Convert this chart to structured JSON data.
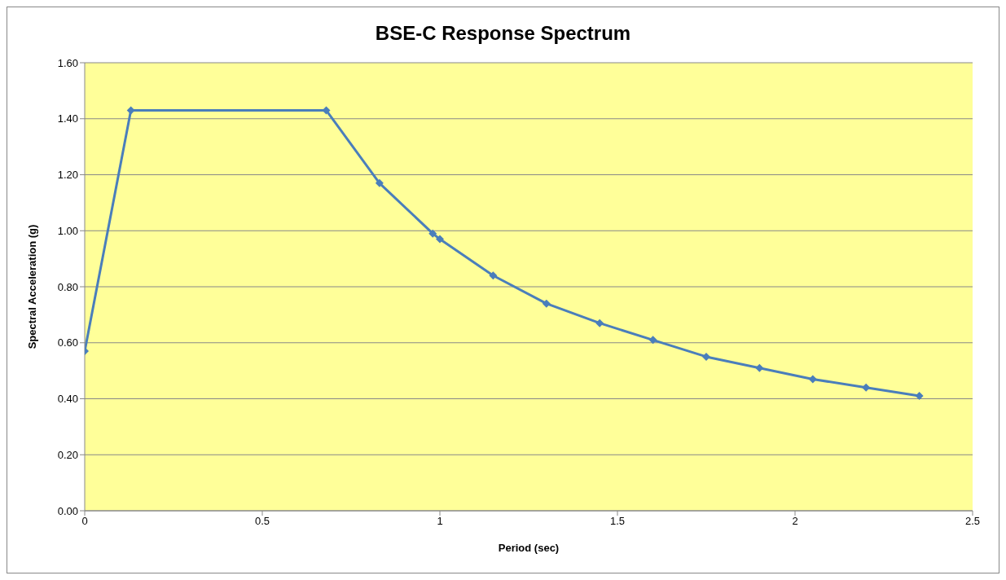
{
  "chart_data": {
    "type": "line",
    "title": "BSE-C Response Spectrum",
    "xlabel": "Period (sec)",
    "ylabel": "Spectral Acceleration (g)",
    "x": [
      0,
      0.13,
      0.68,
      0.83,
      0.98,
      1.0,
      1.15,
      1.3,
      1.45,
      1.6,
      1.75,
      1.9,
      2.05,
      2.2,
      2.35
    ],
    "series": [
      {
        "color": "#4a7ebb",
        "values": [
          0.57,
          1.43,
          1.43,
          1.17,
          0.99,
          0.97,
          0.84,
          0.74,
          0.67,
          0.61,
          0.55,
          0.51,
          0.47,
          0.44,
          0.41
        ]
      }
    ],
    "xlim": [
      0,
      2.5
    ],
    "xticks": [
      0,
      0.5,
      1,
      1.5,
      2,
      2.5
    ],
    "ylim": [
      0,
      1.6
    ],
    "yticks": [
      {
        "value": 0,
        "label": "0.00"
      },
      {
        "value": 0.2,
        "label": "0.20"
      },
      {
        "value": 0.4,
        "label": "0.40"
      },
      {
        "value": 0.6,
        "label": "0.60"
      },
      {
        "value": 0.8,
        "label": "0.80"
      },
      {
        "value": 1.0,
        "label": "1.00"
      },
      {
        "value": 1.2,
        "label": "1.20"
      },
      {
        "value": 1.4,
        "label": "1.40"
      },
      {
        "value": 1.6,
        "label": "1.60"
      }
    ],
    "grid": "y",
    "legend": false,
    "marker": "diamond",
    "line_style": "solid"
  }
}
